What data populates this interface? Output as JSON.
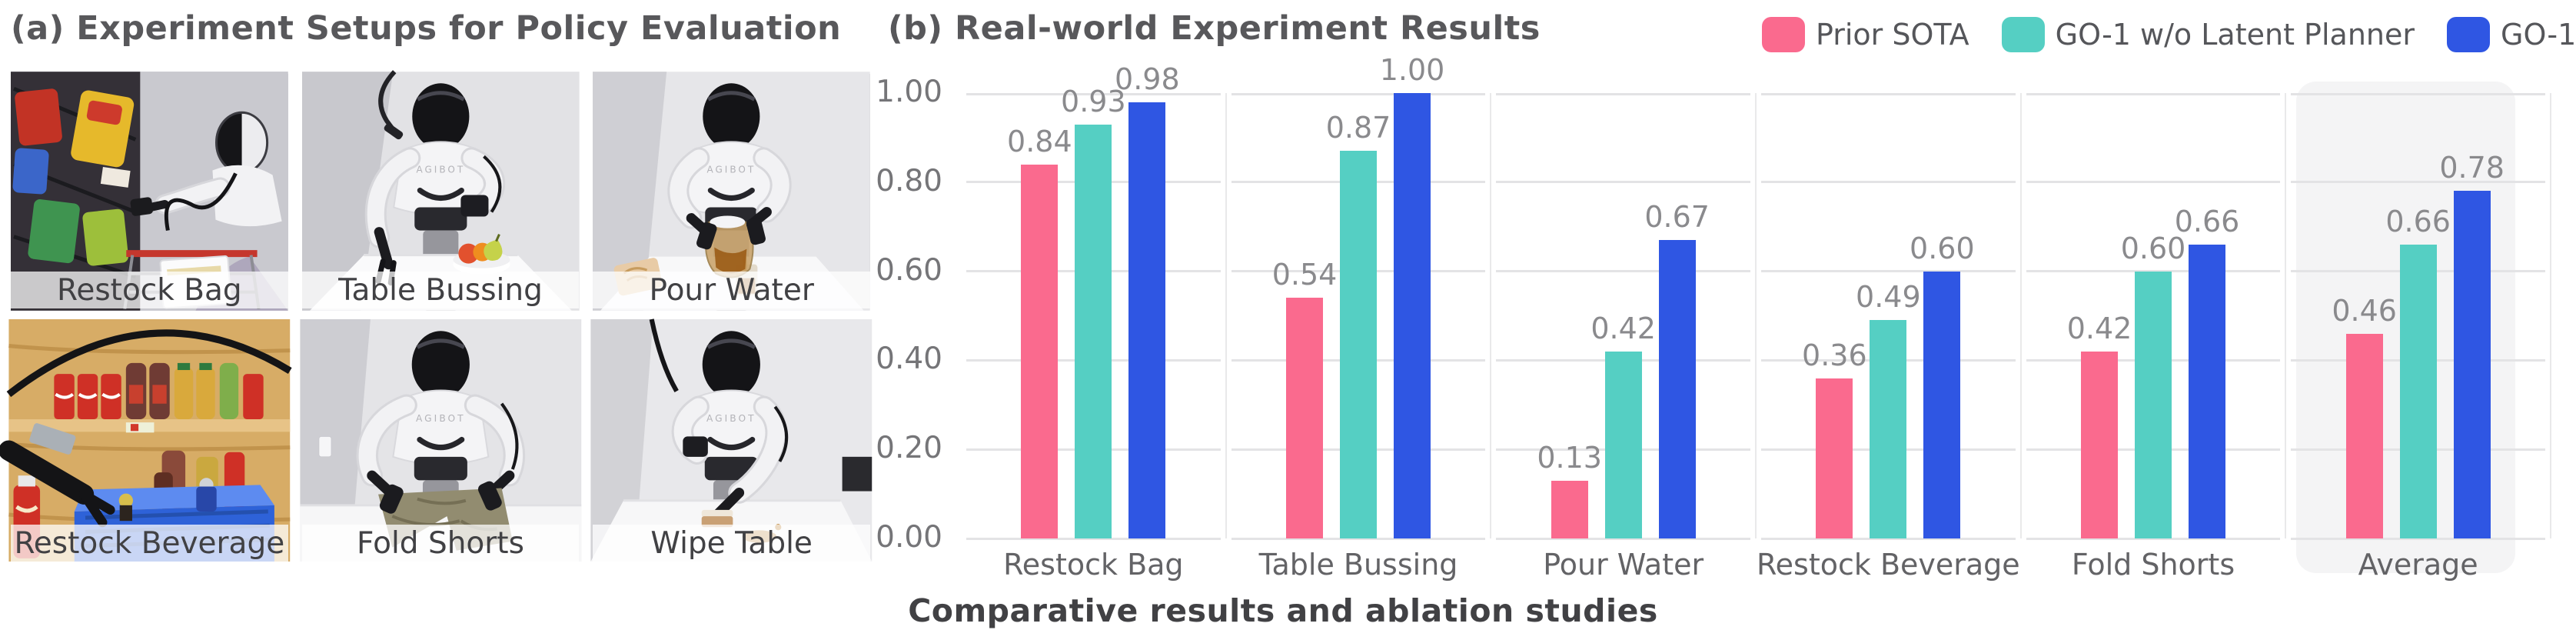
{
  "panel_a": {
    "title": "(a) Experiment Setups for Policy Evaluation",
    "robot_brand": "AGIBOT",
    "setups": [
      {
        "label": "Restock Bag",
        "scene": "restock-bag"
      },
      {
        "label": "Table Bussing",
        "scene": "table-bussing"
      },
      {
        "label": "Pour Water",
        "scene": "pour-water"
      },
      {
        "label": "Restock Beverage",
        "scene": "restock-beverage"
      },
      {
        "label": "Fold Shorts",
        "scene": "fold-shorts"
      },
      {
        "label": "Wipe Table",
        "scene": "wipe-table"
      }
    ]
  },
  "panel_b": {
    "title": "(b) Real-world Experiment Results",
    "caption": "Comparative results and ablation studies"
  },
  "colors": {
    "prior_sota": "#FA6A8E",
    "go1_wo_latent_planner": "#55CFC3",
    "go1": "#2F56E3",
    "gridline": "#E3E3E5",
    "highlight_box": "#F4F4F5",
    "value_label": "#8A8A8D",
    "axis_label": "#757578"
  },
  "chart_data": {
    "type": "bar",
    "title": "(b) Real-world Experiment Results",
    "categories": [
      "Restock Bag",
      "Table Bussing",
      "Pour Water",
      "Restock Beverage",
      "Fold Shorts",
      "Average"
    ],
    "series": [
      {
        "name": "Prior SOTA",
        "color": "#FA6A8E",
        "values": [
          0.84,
          0.54,
          0.13,
          0.36,
          0.42,
          0.46
        ]
      },
      {
        "name": "GO-1 w/o Latent Planner",
        "color": "#55CFC3",
        "values": [
          0.93,
          0.87,
          0.42,
          0.49,
          0.6,
          0.66
        ]
      },
      {
        "name": "GO-1",
        "color": "#2F56E3",
        "values": [
          0.98,
          1.0,
          0.67,
          0.6,
          0.66,
          0.78
        ]
      }
    ],
    "yticks": [
      "0.00",
      "0.20",
      "0.40",
      "0.60",
      "0.80",
      "1.00"
    ],
    "ylim": [
      0,
      1.0
    ],
    "value_label_decimals": 2,
    "grid": "horizontal, with vertical category separators",
    "legend_position": "top-right",
    "highlight_category": "Average",
    "xlabel": "",
    "ylabel": ""
  }
}
